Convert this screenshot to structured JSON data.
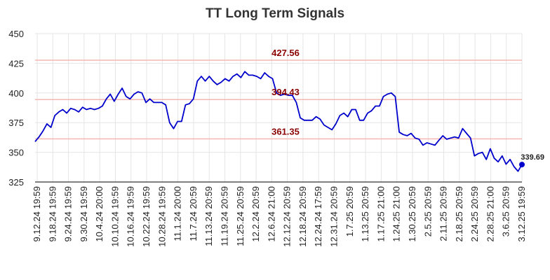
{
  "chart_data": {
    "type": "line",
    "title": "TT Long Term Signals",
    "xlabel": "",
    "ylabel": "",
    "ylim": [
      325,
      450
    ],
    "y_ticks": [
      325,
      350,
      375,
      400,
      425,
      450
    ],
    "x_tick_labels": [
      "9.12.24 19:59",
      "9.18.24 19:59",
      "9.24.24 19:59",
      "9.30.24 19:59",
      "10.4.24 20:00",
      "10.10.24 19:59",
      "10.16.24 19:59",
      "10.22.24 19:59",
      "10.28.24 19:59",
      "11.1.24 20:00",
      "11.7.24 20:59",
      "11.13.24 20:59",
      "11.19.24 20:59",
      "11.25.24 20:59",
      "12.2.24 20:59",
      "12.6.24 21:00",
      "12.12.24 20:59",
      "12.18.24 20:59",
      "12.24.24 17:59",
      "12.31.24 20:59",
      "1.7.25 20:59",
      "1.13.25 20:59",
      "1.17.25 21:00",
      "1.24.25 21:00",
      "1.30.25 20:59",
      "2.5.25 20:59",
      "2.11.25 20:59",
      "2.18.25 20:59",
      "2.24.25 20:59",
      "2.28.25 21:00",
      "3.6.25 20:59",
      "3.12.25 19:59"
    ],
    "grid": true,
    "levels": [
      {
        "value": 427.56,
        "label": "427.56",
        "color": "#8b0000"
      },
      {
        "value": 394.43,
        "label": "394.43",
        "color": "#8b0000"
      },
      {
        "value": 361.35,
        "label": "361.35",
        "color": "#8b0000"
      }
    ],
    "level_line_color": "#f5b7b1",
    "line_color": "#0000cc",
    "last_value_label": "339.69",
    "series": [
      {
        "values": [
          359,
          363,
          368,
          374,
          371,
          381,
          384,
          386,
          383,
          387,
          386,
          384,
          388,
          386,
          387,
          386,
          387,
          389,
          395,
          399,
          393,
          399,
          404,
          397,
          395,
          399,
          401,
          400,
          392,
          395,
          392,
          392,
          392,
          390,
          375,
          370,
          376,
          376,
          390,
          391,
          395,
          410,
          414,
          410,
          414,
          410,
          407,
          409,
          412,
          410,
          414,
          416,
          413,
          418,
          415,
          415,
          414,
          412,
          417,
          414,
          412,
          400,
          398,
          399,
          398,
          398,
          392,
          379,
          377,
          377,
          377,
          380,
          378,
          373,
          371,
          369,
          374,
          381,
          383,
          380,
          386,
          386,
          377,
          377,
          383,
          385,
          389,
          389,
          397,
          399,
          400,
          397,
          367,
          365,
          364,
          366,
          362,
          361,
          356,
          358,
          357,
          356,
          360,
          364,
          361,
          362,
          363,
          362,
          370,
          366,
          362,
          347,
          349,
          350,
          344,
          353,
          345,
          342,
          347,
          340,
          344,
          338,
          334,
          339.69
        ]
      }
    ]
  }
}
